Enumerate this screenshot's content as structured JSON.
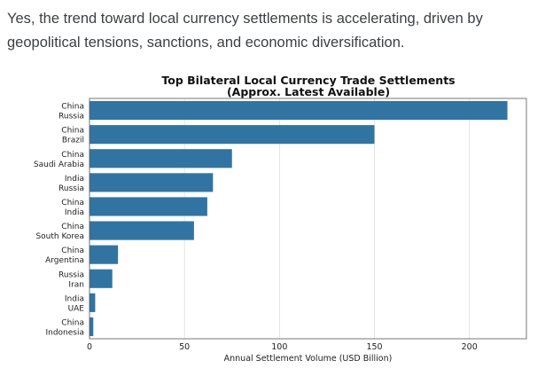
{
  "intro": {
    "text": "Yes, the trend toward local currency settlements is accelerating, driven by geopolitical tensions, sanctions, and economic diversification."
  },
  "chart_data": {
    "type": "bar",
    "orientation": "horizontal",
    "title_line1": "Top Bilateral Local Currency Trade Settlements",
    "title_line2": "(Approx. Latest Available)",
    "xlabel": "Annual Settlement Volume (USD Billion)",
    "ylabel": "",
    "categories": [
      [
        "China",
        "Russia"
      ],
      [
        "China",
        "Brazil"
      ],
      [
        "China",
        "Saudi Arabia"
      ],
      [
        "India",
        "Russia"
      ],
      [
        "China",
        "India"
      ],
      [
        "China",
        "South Korea"
      ],
      [
        "China",
        "Argentina"
      ],
      [
        "Russia",
        "Iran"
      ],
      [
        "India",
        "UAE"
      ],
      [
        "China",
        "Indonesia"
      ]
    ],
    "values": [
      220,
      150,
      75,
      65,
      62,
      55,
      15,
      12,
      3,
      2
    ],
    "xlim": [
      0,
      230
    ],
    "xticks": [
      0,
      50,
      100,
      150,
      200
    ],
    "grid": "vertical",
    "bar_color": "#3274a1"
  }
}
